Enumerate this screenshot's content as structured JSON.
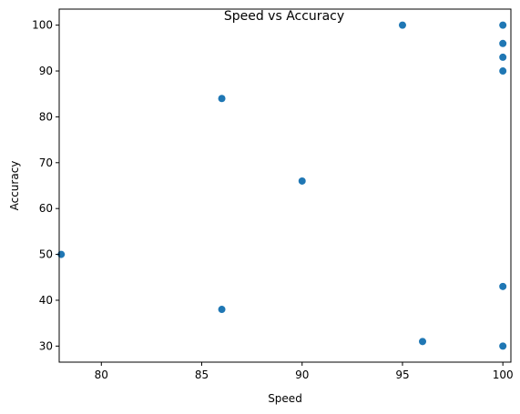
{
  "chart_data": {
    "type": "scatter",
    "title": "Speed vs Accuracy",
    "xlabel": "Speed",
    "ylabel": "Accuracy",
    "xlim": [
      77.9,
      100.4
    ],
    "ylim": [
      26.5,
      103.5
    ],
    "xticks": [
      80,
      85,
      90,
      95,
      100
    ],
    "yticks": [
      30,
      40,
      50,
      60,
      70,
      80,
      90,
      100
    ],
    "grid": false,
    "legend": "none",
    "marker_color": "#1f77b4",
    "points": [
      {
        "x": 95,
        "y": 100
      },
      {
        "x": 100,
        "y": 100
      },
      {
        "x": 100,
        "y": 96
      },
      {
        "x": 100,
        "y": 93
      },
      {
        "x": 100,
        "y": 90
      },
      {
        "x": 86,
        "y": 84
      },
      {
        "x": 90,
        "y": 66
      },
      {
        "x": 78,
        "y": 50
      },
      {
        "x": 100,
        "y": 43
      },
      {
        "x": 86,
        "y": 38
      },
      {
        "x": 96,
        "y": 31
      },
      {
        "x": 100,
        "y": 30
      }
    ]
  }
}
